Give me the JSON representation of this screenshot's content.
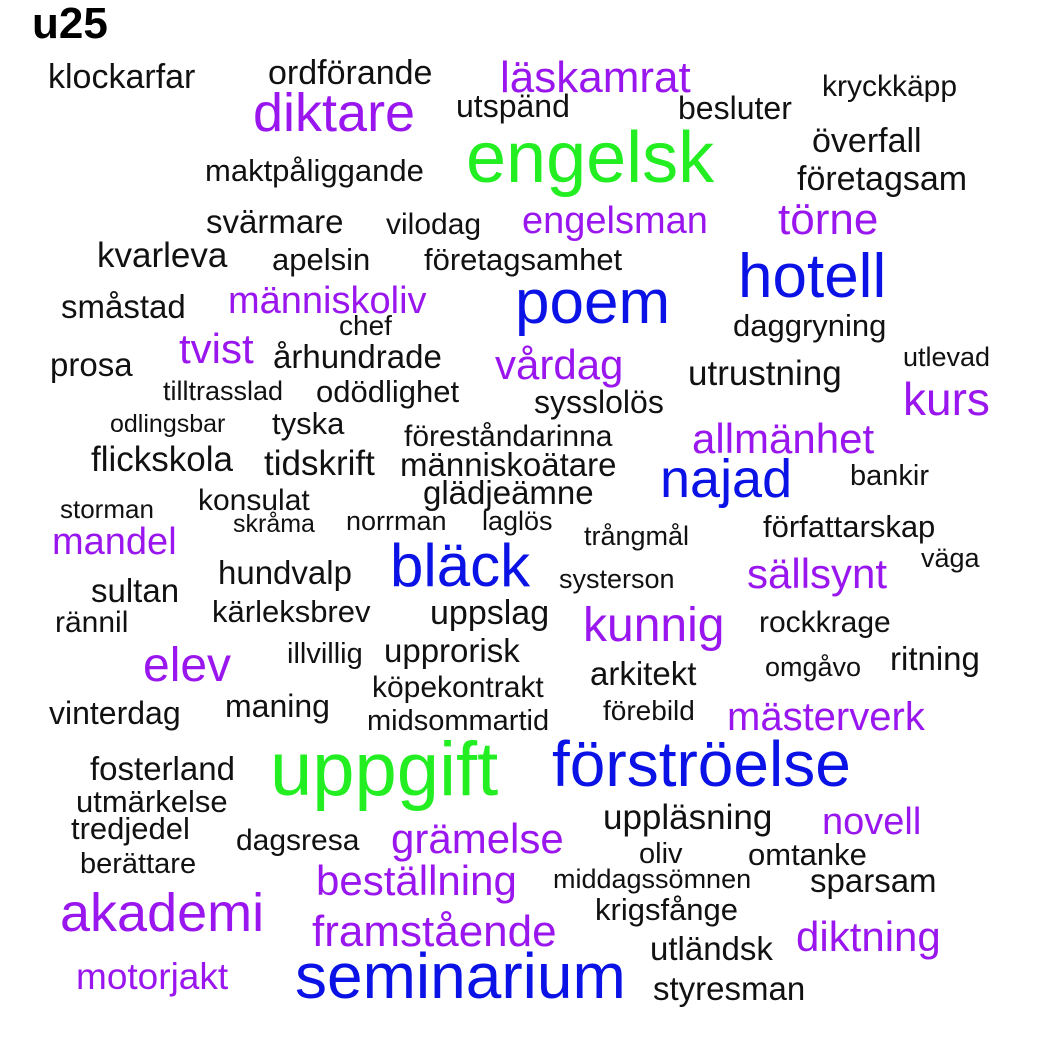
{
  "title": "u25",
  "colors": {
    "green": "#22ee22",
    "blue": "#0a12e6",
    "purple": "#9a16ee",
    "black": "#111111"
  },
  "words": [
    {
      "text": "klockarfar",
      "color": "black"
    },
    {
      "text": "ordförande",
      "color": "black"
    },
    {
      "text": "läskamrat",
      "color": "purple"
    },
    {
      "text": "kryckkäpp",
      "color": "black"
    },
    {
      "text": "diktare",
      "color": "purple"
    },
    {
      "text": "utspänd",
      "color": "black"
    },
    {
      "text": "besluter",
      "color": "black"
    },
    {
      "text": "överfall",
      "color": "black"
    },
    {
      "text": "engelsk",
      "color": "green"
    },
    {
      "text": "maktpåliggande",
      "color": "black"
    },
    {
      "text": "företagsam",
      "color": "black"
    },
    {
      "text": "svärmare",
      "color": "black"
    },
    {
      "text": "vilodag",
      "color": "black"
    },
    {
      "text": "engelsman",
      "color": "purple"
    },
    {
      "text": "törne",
      "color": "purple"
    },
    {
      "text": "kvarleva",
      "color": "black"
    },
    {
      "text": "apelsin",
      "color": "black"
    },
    {
      "text": "företagsamhet",
      "color": "black"
    },
    {
      "text": "hotell",
      "color": "blue"
    },
    {
      "text": "småstad",
      "color": "black"
    },
    {
      "text": "människoliv",
      "color": "purple"
    },
    {
      "text": "poem",
      "color": "blue"
    },
    {
      "text": "chef",
      "color": "black"
    },
    {
      "text": "daggryning",
      "color": "black"
    },
    {
      "text": "tvist",
      "color": "purple"
    },
    {
      "text": "århundrade",
      "color": "black"
    },
    {
      "text": "prosa",
      "color": "black"
    },
    {
      "text": "vårdag",
      "color": "purple"
    },
    {
      "text": "utlevad",
      "color": "black"
    },
    {
      "text": "utrustning",
      "color": "black"
    },
    {
      "text": "tilltrasslad",
      "color": "black"
    },
    {
      "text": "odödlighet",
      "color": "black"
    },
    {
      "text": "sysslolös",
      "color": "black"
    },
    {
      "text": "kurs",
      "color": "purple"
    },
    {
      "text": "odlingsbar",
      "color": "black"
    },
    {
      "text": "tyska",
      "color": "black"
    },
    {
      "text": "föreståndarinna",
      "color": "black"
    },
    {
      "text": "allmänhet",
      "color": "purple"
    },
    {
      "text": "flickskola",
      "color": "black"
    },
    {
      "text": "tidskrift",
      "color": "black"
    },
    {
      "text": "människoätare",
      "color": "black"
    },
    {
      "text": "najad",
      "color": "blue"
    },
    {
      "text": "bankir",
      "color": "black"
    },
    {
      "text": "glädjeämne",
      "color": "black"
    },
    {
      "text": "konsulat",
      "color": "black"
    },
    {
      "text": "storman",
      "color": "black"
    },
    {
      "text": "skråma",
      "color": "black"
    },
    {
      "text": "norrman",
      "color": "black"
    },
    {
      "text": "laglös",
      "color": "black"
    },
    {
      "text": "författarskap",
      "color": "black"
    },
    {
      "text": "mandel",
      "color": "purple"
    },
    {
      "text": "trångmål",
      "color": "black"
    },
    {
      "text": "bläck",
      "color": "blue"
    },
    {
      "text": "väga",
      "color": "black"
    },
    {
      "text": "hundvalp",
      "color": "black"
    },
    {
      "text": "sällsynt",
      "color": "purple"
    },
    {
      "text": "sultan",
      "color": "black"
    },
    {
      "text": "systerson",
      "color": "black"
    },
    {
      "text": "kärleksbrev",
      "color": "black"
    },
    {
      "text": "uppslag",
      "color": "black"
    },
    {
      "text": "rännil",
      "color": "black"
    },
    {
      "text": "kunnig",
      "color": "purple"
    },
    {
      "text": "rockkrage",
      "color": "black"
    },
    {
      "text": "upprorisk",
      "color": "black"
    },
    {
      "text": "illvillig",
      "color": "black"
    },
    {
      "text": "elev",
      "color": "purple"
    },
    {
      "text": "ritning",
      "color": "black"
    },
    {
      "text": "omgåvo",
      "color": "black"
    },
    {
      "text": "arkitekt",
      "color": "black"
    },
    {
      "text": "köpekontrakt",
      "color": "black"
    },
    {
      "text": "maning",
      "color": "black"
    },
    {
      "text": "vinterdag",
      "color": "black"
    },
    {
      "text": "förebild",
      "color": "black"
    },
    {
      "text": "mästerverk",
      "color": "purple"
    },
    {
      "text": "midsommartid",
      "color": "black"
    },
    {
      "text": "fosterland",
      "color": "black"
    },
    {
      "text": "uppgift",
      "color": "green"
    },
    {
      "text": "förströelse",
      "color": "blue"
    },
    {
      "text": "utmärkelse",
      "color": "black"
    },
    {
      "text": "tredjedel",
      "color": "black"
    },
    {
      "text": "uppläsning",
      "color": "black"
    },
    {
      "text": "novell",
      "color": "purple"
    },
    {
      "text": "dagsresa",
      "color": "black"
    },
    {
      "text": "grämelse",
      "color": "purple"
    },
    {
      "text": "oliv",
      "color": "black"
    },
    {
      "text": "omtanke",
      "color": "black"
    },
    {
      "text": "berättare",
      "color": "black"
    },
    {
      "text": "middagssömnen",
      "color": "black"
    },
    {
      "text": "beställning",
      "color": "purple"
    },
    {
      "text": "sparsam",
      "color": "black"
    },
    {
      "text": "akademi",
      "color": "purple"
    },
    {
      "text": "krigsfånge",
      "color": "black"
    },
    {
      "text": "framstående",
      "color": "purple"
    },
    {
      "text": "diktning",
      "color": "purple"
    },
    {
      "text": "utländsk",
      "color": "black"
    },
    {
      "text": "seminarium",
      "color": "blue"
    },
    {
      "text": "motorjakt",
      "color": "purple"
    },
    {
      "text": "styresman",
      "color": "black"
    }
  ]
}
